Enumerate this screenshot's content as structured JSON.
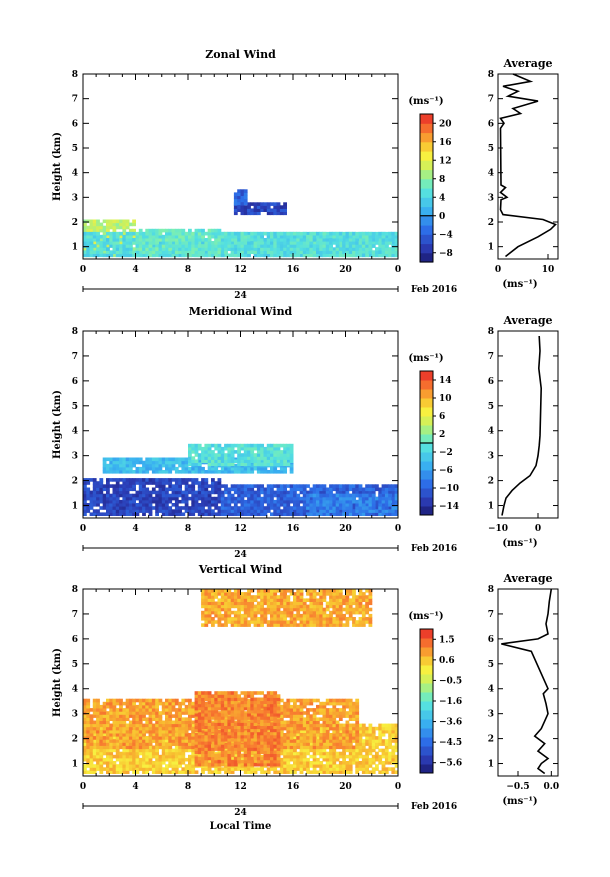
{
  "figure": {
    "date_label": "Feb 2016",
    "day_label": "24",
    "xlabel_bottom": "Local Time"
  },
  "chart_data": [
    {
      "type": "heatmap",
      "title": "Zonal Wind",
      "xlabel": "",
      "ylabel": "Height (km)",
      "x_range": [
        0,
        24
      ],
      "y_range": [
        0.5,
        8
      ],
      "x_ticks": [
        "0",
        "4",
        "8",
        "12",
        "16",
        "20",
        "0"
      ],
      "y_ticks": [
        "1",
        "2",
        "3",
        "4",
        "5",
        "6",
        "7",
        "8"
      ],
      "colorbar": {
        "label": "(ms⁻¹)",
        "ticks": [
          "20",
          "16",
          "12",
          "8",
          "4",
          "0",
          "−4",
          "−8"
        ],
        "range": [
          -10,
          22
        ],
        "contour_at": 0
      },
      "regions": [
        {
          "t0": 0,
          "t1": 4,
          "h0": 0.6,
          "h1": 2.1,
          "value": 10
        },
        {
          "t0": 0,
          "t1": 24,
          "h0": 0.6,
          "h1": 1.5,
          "value": 5
        },
        {
          "t0": 4,
          "t1": 10.5,
          "h0": 0.6,
          "h1": 1.7,
          "value": 6
        },
        {
          "t0": 10.5,
          "t1": 24,
          "h0": 0.6,
          "h1": 1.6,
          "value": 5
        },
        {
          "t0": 11.5,
          "t1": 15.5,
          "h0": 2.3,
          "h1": 2.7,
          "value": -6
        },
        {
          "t0": 11.5,
          "t1": 12.5,
          "h0": 2.7,
          "h1": 3.3,
          "value": -4
        }
      ],
      "profile": {
        "title": "Average",
        "xlabel": "(ms⁻¹)",
        "x_ticks": [
          "0",
          "10"
        ],
        "x_range": [
          0,
          12
        ],
        "heights": [
          0.6,
          1.0,
          1.4,
          1.7,
          1.9,
          2.1,
          2.3,
          2.5,
          2.9,
          3.0,
          3.2,
          3.4,
          3.5,
          5.8,
          6.0,
          6.2,
          6.4,
          6.6,
          6.9,
          7.1,
          7.3,
          7.5,
          7.7,
          8.0
        ],
        "values": [
          1.5,
          4.0,
          8.0,
          10.5,
          11.5,
          9.0,
          1.0,
          0.5,
          0.6,
          1.8,
          0.5,
          1.5,
          0.6,
          0.5,
          1.2,
          0.5,
          4.5,
          3.0,
          8.0,
          2.0,
          4.0,
          1.0,
          6.5,
          3.0
        ]
      }
    },
    {
      "type": "heatmap",
      "title": "Meridional Wind",
      "xlabel": "",
      "ylabel": "Height (km)",
      "x_range": [
        0,
        24
      ],
      "y_range": [
        0.5,
        8
      ],
      "x_ticks": [
        "0",
        "4",
        "8",
        "12",
        "16",
        "20",
        "0"
      ],
      "y_ticks": [
        "1",
        "2",
        "3",
        "4",
        "5",
        "6",
        "7",
        "8"
      ],
      "colorbar": {
        "label": "(ms⁻¹)",
        "ticks": [
          "14",
          "10",
          "6",
          "2",
          "−2",
          "−6",
          "−10",
          "−14"
        ],
        "range": [
          -16,
          16
        ],
        "contour_at": 0
      },
      "regions": [
        {
          "t0": 0,
          "t1": 10.5,
          "h0": 0.6,
          "h1": 2.1,
          "value": -12
        },
        {
          "t0": 10.5,
          "t1": 24,
          "h0": 0.6,
          "h1": 1.8,
          "value": -10
        },
        {
          "t0": 17,
          "t1": 24,
          "h0": 0.6,
          "h1": 1.4,
          "value": -8
        },
        {
          "t0": 1.5,
          "t1": 16,
          "h0": 2.3,
          "h1": 2.9,
          "value": -4
        },
        {
          "t0": 8,
          "t1": 16,
          "h0": 2.6,
          "h1": 3.4,
          "value": -1
        }
      ],
      "profile": {
        "title": "Average",
        "xlabel": "(ms⁻¹)",
        "x_ticks": [
          "−10",
          "0"
        ],
        "x_range": [
          -10,
          5
        ],
        "heights": [
          0.6,
          1.0,
          1.3,
          1.6,
          1.9,
          2.2,
          2.6,
          3.0,
          3.4,
          3.8,
          5.7,
          6.5,
          7.2,
          7.8
        ],
        "values": [
          -9.0,
          -8.5,
          -8.0,
          -6.5,
          -4.5,
          -2.0,
          -0.5,
          0.0,
          0.3,
          0.5,
          0.8,
          0.2,
          0.5,
          0.3
        ]
      }
    },
    {
      "type": "heatmap",
      "title": "Vertical Wind",
      "xlabel": "Local Time",
      "ylabel": "Height (km)",
      "x_range": [
        0,
        24
      ],
      "y_range": [
        0.5,
        8
      ],
      "x_ticks": [
        "0",
        "4",
        "8",
        "12",
        "16",
        "20",
        "0"
      ],
      "y_ticks": [
        "1",
        "2",
        "3",
        "4",
        "5",
        "6",
        "7",
        "8"
      ],
      "colorbar": {
        "label": "(ms⁻¹)",
        "ticks": [
          "1.5",
          "0.6",
          "−0.5",
          "−1.6",
          "−3.6",
          "−4.5",
          "−5.6"
        ],
        "range": [
          -6,
          2
        ],
        "contour_at": null
      },
      "regions": [
        {
          "t0": 0,
          "t1": 24,
          "h0": 0.6,
          "h1": 2.6,
          "value": 0.2
        },
        {
          "t0": 0,
          "t1": 21,
          "h0": 1.6,
          "h1": 3.6,
          "value": 0.7
        },
        {
          "t0": 8.5,
          "t1": 15,
          "h0": 0.9,
          "h1": 3.8,
          "value": 1.0
        },
        {
          "t0": 9,
          "t1": 22,
          "h0": 6.5,
          "h1": 8.0,
          "value": 0.6
        }
      ],
      "profile": {
        "title": "Average",
        "xlabel": "(ms⁻¹)",
        "x_ticks": [
          "−0.5",
          "0.0"
        ],
        "x_range": [
          -0.8,
          0.1
        ],
        "heights": [
          0.6,
          0.8,
          1.0,
          1.2,
          1.5,
          1.8,
          2.1,
          2.4,
          2.7,
          3.0,
          3.4,
          3.8,
          4.0,
          5.5,
          5.8,
          6.0,
          6.2,
          6.6,
          7.0,
          7.5,
          8.0
        ],
        "values": [
          -0.1,
          -0.2,
          -0.15,
          -0.05,
          -0.2,
          -0.1,
          -0.25,
          -0.15,
          -0.1,
          -0.05,
          -0.08,
          -0.12,
          -0.05,
          -0.3,
          -0.75,
          -0.2,
          -0.05,
          -0.08,
          -0.05,
          -0.03,
          0.0
        ]
      }
    }
  ]
}
